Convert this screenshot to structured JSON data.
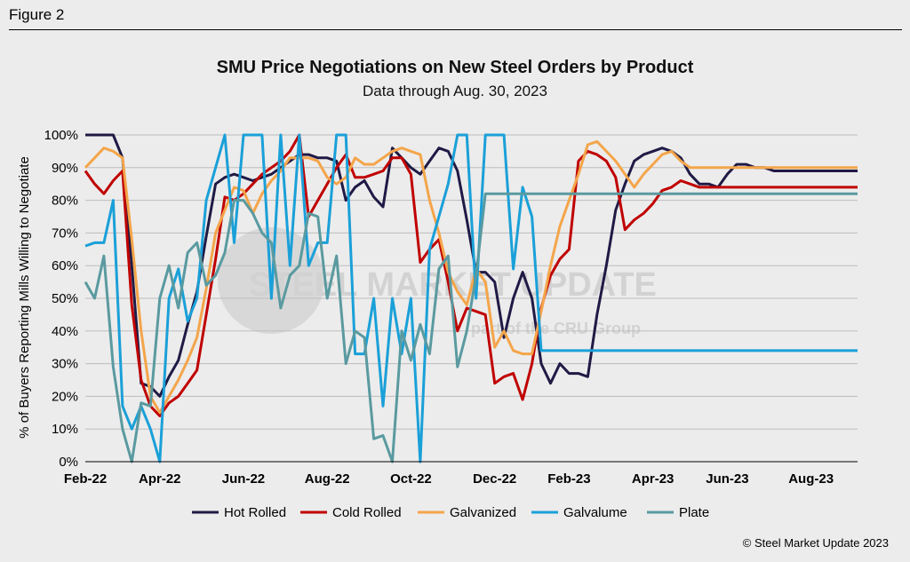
{
  "figure_label": "Figure 2",
  "copyright": "© Steel Market Update 2023",
  "watermark": {
    "brand": "STEEL MARKET UPDATE",
    "tagline": "part of the CRU Group"
  },
  "colors": {
    "Hot Rolled": "#1f1a45",
    "Cold Rolled": "#c00000",
    "Galvanized": "#f4a54a",
    "Galvalume": "#1aa0d8",
    "Plate": "#5a9aa0"
  },
  "chart_data": {
    "type": "line",
    "title": "SMU Price Negotiations on New Steel Orders by Product",
    "subtitle": "Data through Aug. 30, 2023",
    "xlabel": "",
    "ylabel": "% of Buyers Reporting Mills Willing to Negotiate",
    "ylim": [
      0,
      100
    ],
    "yticks": [
      "0%",
      "10%",
      "20%",
      "30%",
      "40%",
      "50%",
      "60%",
      "70%",
      "80%",
      "90%",
      "100%"
    ],
    "xticks": [
      "Feb-22",
      "Apr-22",
      "Jun-22",
      "Aug-22",
      "Oct-22",
      "Dec-22",
      "Feb-23",
      "Apr-23",
      "Jun-23",
      "Aug-23"
    ],
    "x_tick_index": [
      0,
      8,
      17,
      26,
      35,
      44,
      52,
      61,
      69,
      78
    ],
    "grid": true,
    "legend_position": "bottom",
    "n_points": 84,
    "series": [
      {
        "name": "Hot Rolled",
        "values": [
          100,
          100,
          100,
          100,
          93,
          60,
          24,
          23,
          20,
          26,
          31,
          42,
          52,
          69,
          85,
          87,
          88,
          87,
          86,
          87,
          88,
          90,
          92,
          94,
          94,
          93,
          93,
          92,
          80,
          84,
          86,
          81,
          78,
          96,
          93,
          90,
          88,
          92,
          96,
          95,
          89,
          74,
          58,
          58,
          55,
          38,
          50,
          58,
          50,
          30,
          24,
          30,
          27,
          27,
          26,
          45,
          60,
          77,
          85,
          92,
          94,
          95,
          96,
          95,
          93,
          88,
          85,
          85,
          84,
          88,
          91,
          91,
          90,
          90,
          89,
          89,
          89,
          89,
          89,
          89,
          89,
          89,
          89,
          89
        ]
      },
      {
        "name": "Cold Rolled",
        "values": [
          89,
          85,
          82,
          86,
          89,
          48,
          25,
          17,
          14,
          18,
          20,
          24,
          28,
          45,
          62,
          81,
          80,
          82,
          85,
          88,
          90,
          92,
          95,
          100,
          75,
          80,
          85,
          90,
          94,
          87,
          87,
          88,
          89,
          93,
          93,
          88,
          61,
          65,
          68,
          55,
          40,
          47,
          46,
          45,
          24,
          26,
          27,
          19,
          30,
          47,
          57,
          62,
          65,
          92,
          95,
          94,
          92,
          87,
          71,
          74,
          76,
          79,
          83,
          84,
          86,
          85,
          84,
          84,
          84,
          84,
          84,
          84,
          84,
          84,
          84,
          84,
          84,
          84,
          84,
          84,
          84,
          84,
          84,
          84
        ]
      },
      {
        "name": "Galvanized",
        "values": [
          90,
          93,
          96,
          95,
          93,
          68,
          40,
          20,
          15,
          20,
          25,
          31,
          38,
          53,
          70,
          77,
          84,
          83,
          76,
          82,
          86,
          89,
          93,
          93,
          93,
          92,
          87,
          85,
          87,
          93,
          91,
          91,
          93,
          95,
          96,
          95,
          94,
          80,
          70,
          58,
          52,
          48,
          59,
          55,
          35,
          40,
          34,
          33,
          33,
          46,
          60,
          72,
          80,
          88,
          97,
          98,
          95,
          92,
          88,
          84,
          88,
          91,
          94,
          95,
          92,
          90,
          90,
          90,
          90,
          90,
          90,
          90,
          90,
          90,
          90,
          90,
          90,
          90,
          90,
          90,
          90,
          90,
          90,
          90
        ]
      },
      {
        "name": "Galvalume",
        "values": [
          66,
          67,
          67,
          80,
          17,
          10,
          17,
          10,
          0,
          50,
          59,
          43,
          50,
          80,
          90,
          100,
          67,
          100,
          100,
          100,
          50,
          100,
          60,
          100,
          60,
          67,
          67,
          100,
          100,
          33,
          33,
          50,
          17,
          50,
          33,
          50,
          0,
          65,
          75,
          85,
          100,
          100,
          50,
          100,
          100,
          100,
          59,
          84,
          75,
          34,
          34,
          34,
          34,
          34,
          34,
          34,
          34,
          34,
          34,
          34,
          34,
          34,
          34,
          34,
          34,
          34,
          34,
          34,
          34,
          34,
          34,
          34,
          34,
          34,
          34,
          34,
          34,
          34,
          34,
          34,
          34,
          34,
          34,
          34
        ]
      },
      {
        "name": "Plate",
        "values": [
          55,
          50,
          63,
          29,
          10,
          0,
          18,
          17,
          50,
          60,
          47,
          64,
          67,
          54,
          57,
          64,
          80,
          80,
          76,
          70,
          67,
          47,
          57,
          60,
          76,
          75,
          50,
          63,
          30,
          40,
          38,
          7,
          8,
          0,
          40,
          31,
          42,
          33,
          59,
          63,
          29,
          40,
          57,
          82,
          82,
          82,
          82,
          82,
          82,
          82,
          82,
          82,
          82,
          82,
          82,
          82,
          82,
          82,
          82,
          82,
          82,
          82,
          82,
          82,
          82,
          82,
          82,
          82,
          82,
          82,
          82,
          82,
          82,
          82,
          82,
          82,
          82,
          82,
          82,
          82,
          82,
          82,
          82,
          82
        ]
      }
    ]
  }
}
